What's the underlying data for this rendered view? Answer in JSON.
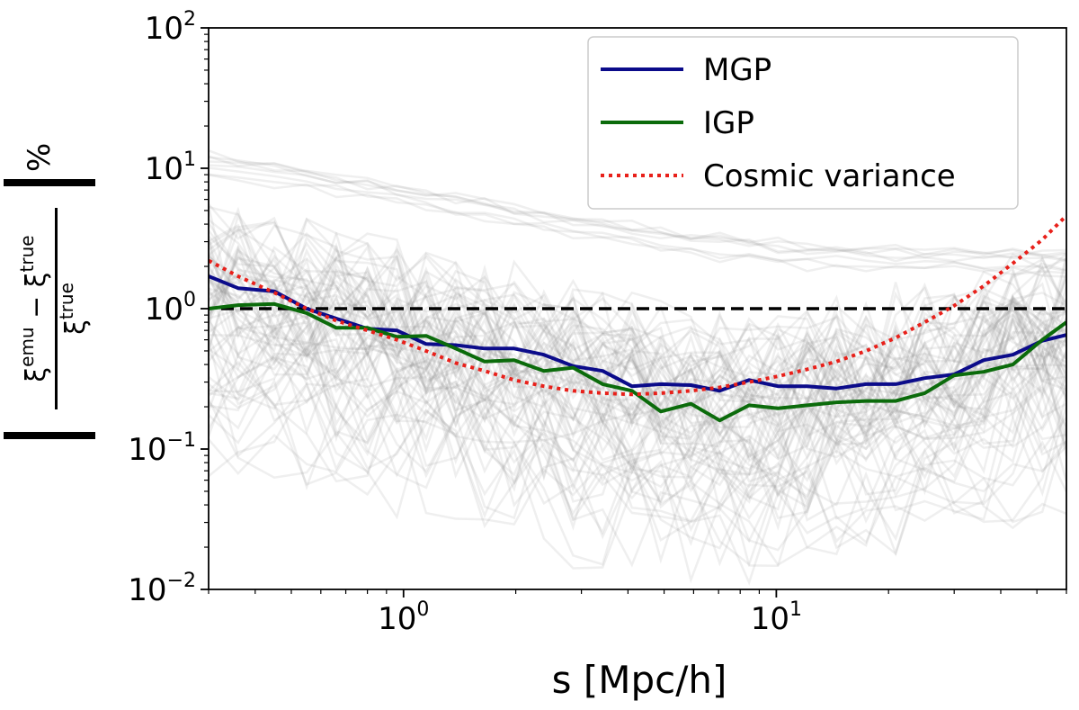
{
  "chart_data": {
    "type": "line",
    "xscale": "log",
    "yscale": "log",
    "xlim": [
      0.3,
      60
    ],
    "ylim": [
      0.01,
      100
    ],
    "xlabel": "s [Mpc/h]",
    "ylabel": {
      "num_a": "ξ",
      "num_a_sup": "emu",
      "num_op": " − ",
      "num_b": "ξ",
      "num_b_sup": "true",
      "den": "ξ",
      "den_sup": "true",
      "unit": "%"
    },
    "x_ticks": [
      {
        "value": 1,
        "base": "10",
        "exp": "0"
      },
      {
        "value": 10,
        "base": "10",
        "exp": "1"
      }
    ],
    "y_ticks": [
      {
        "value": 0.01,
        "base": "10",
        "exp": "−2"
      },
      {
        "value": 0.1,
        "base": "10",
        "exp": "−1"
      },
      {
        "value": 1,
        "base": "10",
        "exp": "0"
      },
      {
        "value": 10,
        "base": "10",
        "exp": "1"
      },
      {
        "value": 100,
        "base": "10",
        "exp": "2"
      }
    ],
    "grid": false,
    "legend_position": "top-right",
    "reference_line": {
      "y": 1,
      "style": "dashed",
      "color": "#000000"
    },
    "series": [
      {
        "name": "MGP",
        "color": "#0b0b8a",
        "style": "solid",
        "x": [
          0.3,
          0.36,
          0.45,
          0.55,
          0.66,
          0.8,
          0.96,
          1.15,
          1.38,
          1.65,
          1.98,
          2.38,
          2.85,
          3.42,
          4.1,
          4.9,
          5.9,
          7.05,
          8.45,
          10.1,
          12.1,
          14.5,
          17.4,
          20.9,
          25.0,
          30.0,
          36.0,
          43.1,
          51.7,
          60.0
        ],
        "y": [
          1.7,
          1.4,
          1.33,
          1.0,
          0.85,
          0.72,
          0.7,
          0.56,
          0.55,
          0.52,
          0.52,
          0.47,
          0.39,
          0.36,
          0.28,
          0.29,
          0.285,
          0.26,
          0.31,
          0.28,
          0.28,
          0.27,
          0.29,
          0.29,
          0.32,
          0.34,
          0.43,
          0.47,
          0.59,
          0.65
        ]
      },
      {
        "name": "IGP",
        "color": "#0b6b0b",
        "style": "solid",
        "x": [
          0.3,
          0.36,
          0.45,
          0.55,
          0.66,
          0.8,
          0.96,
          1.15,
          1.38,
          1.65,
          1.98,
          2.38,
          2.85,
          3.42,
          4.1,
          4.9,
          5.9,
          7.05,
          8.45,
          10.1,
          12.1,
          14.5,
          17.4,
          20.9,
          25.0,
          30.0,
          36.0,
          43.1,
          51.7,
          60.0
        ],
        "y": [
          1.0,
          1.06,
          1.08,
          0.93,
          0.73,
          0.73,
          0.63,
          0.64,
          0.52,
          0.42,
          0.43,
          0.36,
          0.38,
          0.29,
          0.26,
          0.185,
          0.21,
          0.16,
          0.205,
          0.195,
          0.205,
          0.215,
          0.22,
          0.22,
          0.25,
          0.335,
          0.355,
          0.4,
          0.6,
          0.8
        ]
      },
      {
        "name": "Cosmic variance",
        "color": "#e8201a",
        "style": "dotted",
        "x": [
          0.3,
          0.36,
          0.45,
          0.55,
          0.66,
          0.8,
          0.96,
          1.15,
          1.38,
          1.65,
          1.98,
          2.38,
          2.85,
          3.42,
          4.1,
          4.9,
          5.9,
          7.05,
          8.45,
          10.1,
          12.1,
          14.5,
          17.4,
          20.9,
          25.0,
          30.0,
          36.0,
          43.1,
          51.7,
          60.0
        ],
        "y": [
          2.2,
          1.7,
          1.3,
          1.0,
          0.82,
          0.7,
          0.6,
          0.5,
          0.41,
          0.36,
          0.31,
          0.28,
          0.26,
          0.25,
          0.245,
          0.25,
          0.26,
          0.275,
          0.3,
          0.33,
          0.37,
          0.42,
          0.5,
          0.62,
          0.8,
          1.05,
          1.45,
          2.1,
          3.1,
          4.6
        ]
      }
    ]
  }
}
